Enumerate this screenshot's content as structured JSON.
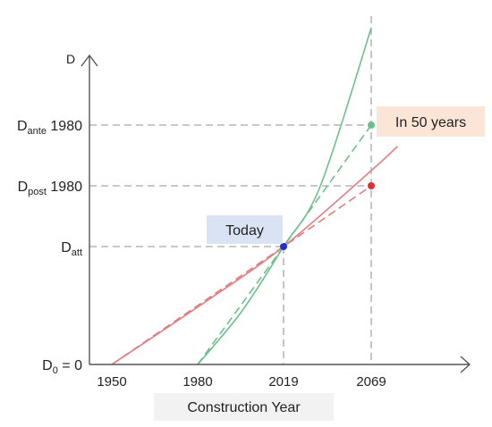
{
  "chart_data": {
    "type": "line",
    "xlabel": "Construction Year",
    "ylabel": "D",
    "x_ticks": [
      1950,
      1980,
      2019,
      2069
    ],
    "y_ticks": [
      {
        "main": "D",
        "sub": "0",
        "suffix": " = 0",
        "value": 0
      },
      {
        "main": "D",
        "sub": "att",
        "suffix": "",
        "value": 1
      },
      {
        "main": "D",
        "sub": "post",
        "suffix": " 1980",
        "value": 2
      },
      {
        "main": "D",
        "sub": "ante",
        "suffix": " 1980",
        "value": 3
      }
    ],
    "series": [
      {
        "color": "#6cc08b",
        "style": "solid",
        "points": [
          [
            1980,
            0
          ],
          [
            2000,
            0.45
          ],
          [
            2019,
            1
          ],
          [
            2040,
            2.0
          ],
          [
            2069,
            4.6
          ]
        ]
      },
      {
        "color": "#6cc08b",
        "style": "dashed",
        "points": [
          [
            1980,
            0
          ],
          [
            2019,
            1
          ],
          [
            2069,
            3
          ]
        ]
      },
      {
        "color": "#e07e80",
        "style": "solid",
        "points": [
          [
            1950,
            0
          ],
          [
            1985,
            0.55
          ],
          [
            2019,
            1
          ],
          [
            2069,
            2.25
          ],
          [
            2084,
            2.65
          ]
        ]
      },
      {
        "color": "#e07e80",
        "style": "dashed",
        "points": [
          [
            1950,
            0
          ],
          [
            2019,
            1
          ],
          [
            2069,
            2
          ]
        ]
      }
    ],
    "points": [
      {
        "x": 2019,
        "y": 1,
        "color": "#1f2fd0"
      },
      {
        "x": 2069,
        "y": 3,
        "color": "#6cc08b"
      },
      {
        "x": 2069,
        "y": 2,
        "color": "#e03030"
      }
    ],
    "annotations": [
      {
        "text": "Today",
        "bg": "#dae3f3"
      },
      {
        "text": "In 50 years",
        "bg": "#fbe5d6"
      }
    ],
    "guide_color": "#a6a6a6",
    "axis_color": "#555555",
    "xlabel_bg": "#f2f2f2"
  }
}
